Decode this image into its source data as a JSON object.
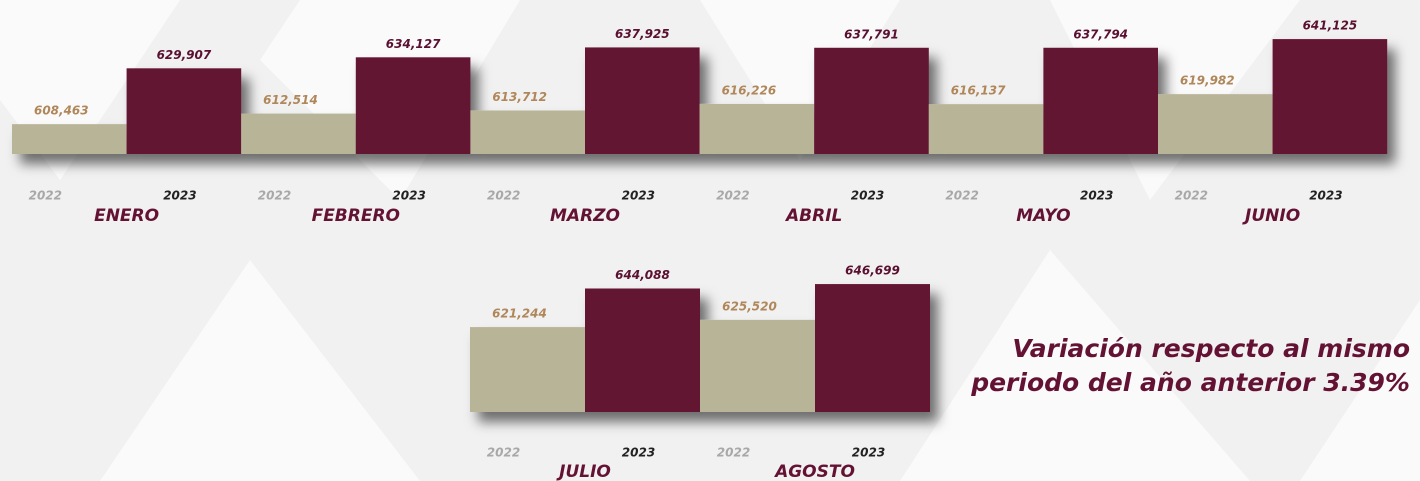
{
  "chart_data": [
    {
      "type": "bar",
      "categories": [
        "ENERO",
        "FEBRERO",
        "MARZO",
        "ABRIL",
        "MAYO",
        "JUNIO"
      ],
      "series": [
        {
          "name": "2022",
          "color": "#b8b497",
          "values": [
            608463,
            612514,
            613712,
            616226,
            616137,
            619982
          ],
          "value_labels": [
            "608,463",
            "612,514",
            "613,712",
            "616,226",
            "616,137",
            "619,982"
          ]
        },
        {
          "name": "2023",
          "color": "#641233",
          "values": [
            629907,
            634127,
            637925,
            637791,
            637794,
            641125
          ],
          "value_labels": [
            "629,907",
            "634,127",
            "637,925",
            "637,791",
            "637,794",
            "641,125"
          ]
        }
      ],
      "ylim": [
        597000,
        645000
      ]
    },
    {
      "type": "bar",
      "categories": [
        "JULIO",
        "AGOSTO"
      ],
      "series": [
        {
          "name": "2022",
          "color": "#b8b497",
          "values": [
            621244,
            625520
          ],
          "value_labels": [
            "621,244",
            "625,520"
          ]
        },
        {
          "name": "2023",
          "color": "#641233",
          "values": [
            644088,
            646699
          ],
          "value_labels": [
            "644,088",
            "646,699"
          ]
        }
      ],
      "ylim": [
        571000,
        650000
      ],
      "annotation": [
        "Variación respecto al mismo",
        "periodo del año anterior 3.39%"
      ]
    }
  ]
}
